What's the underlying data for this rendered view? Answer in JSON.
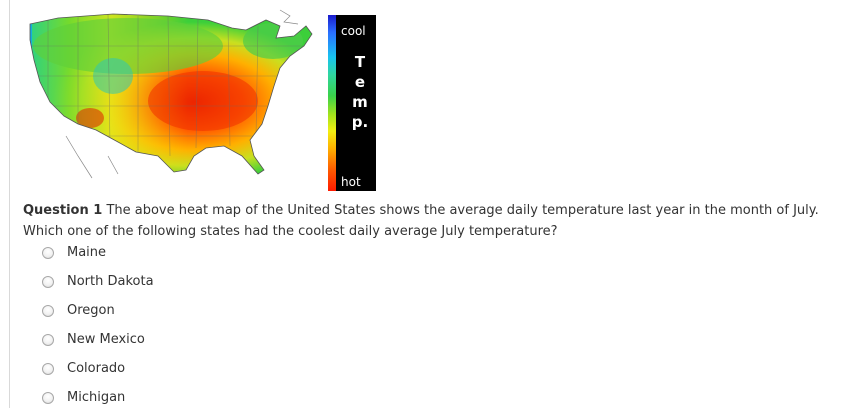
{
  "legend": {
    "cool_label": "cool",
    "hot_label": "hot",
    "letters": [
      "T",
      "e",
      "m",
      "p."
    ],
    "colors": [
      "#1a1acc",
      "#18c4f0",
      "#3ad24a",
      "#f2ee12",
      "#ff5a00",
      "#ff1a00"
    ]
  },
  "question": {
    "number": "Question 1",
    "text": "The above heat map of the United States shows the average daily temperature last year in the month of July. Which one of the following states had the coolest daily average July temperature?"
  },
  "choices": [
    "Maine",
    "North Dakota",
    "Oregon",
    "New Mexico",
    "Colorado",
    "Michigan"
  ]
}
